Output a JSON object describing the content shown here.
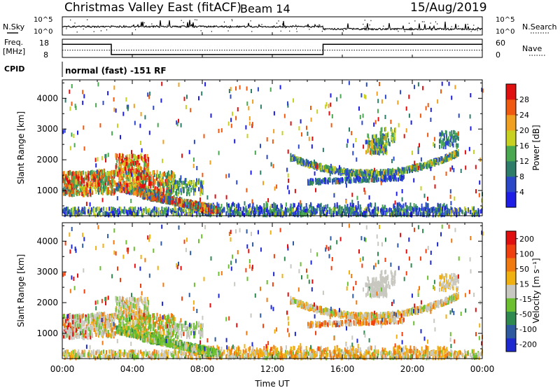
{
  "header": {
    "title": "Christmas Valley East (fitACF)",
    "beam": "Beam 14",
    "date": "15/Aug/2019"
  },
  "panels": {
    "nsky": {
      "left_label": "N.Sky",
      "right_label": "N.Search",
      "left_ticks": [
        "10^5",
        "10^0"
      ],
      "right_ticks": [
        "10^5",
        "10^0"
      ]
    },
    "freq": {
      "left_label_1": "Freq.",
      "left_label_2": "[MHz]",
      "right_label": "Nave",
      "left_ticks": [
        "18",
        "8"
      ],
      "right_ticks": [
        "60",
        "0"
      ],
      "freq_mhz": [
        {
          "from": 0.0,
          "to": 2.8,
          "value": 15.2
        },
        {
          "from": 2.8,
          "to": 14.9,
          "value": 9.6
        },
        {
          "from": 14.9,
          "to": 24.0,
          "value": 15.2
        }
      ],
      "nave": 24
    },
    "cpid": {
      "label": "CPID",
      "text": "normal (fast) -151 RF"
    }
  },
  "chart_data": [
    {
      "type": "heatmap",
      "name": "power",
      "ylabel": "Slant Range [km]",
      "yticks": [
        "1000",
        "2000",
        "3000",
        "4000"
      ],
      "ylim": [
        180,
        4600
      ],
      "colorbar_label": "Power [dB]",
      "colorbar_ticks": [
        "4",
        "8",
        "12",
        "16",
        "20",
        "24",
        "28"
      ],
      "colorbar_range": [
        0,
        32
      ]
    },
    {
      "type": "heatmap",
      "name": "velocity",
      "ylabel": "Slant Range [km]",
      "yticks": [
        "1000",
        "2000",
        "3000",
        "4000"
      ],
      "ylim": [
        180,
        4600
      ],
      "colorbar_label": "Velocity [m s⁻¹]",
      "colorbar_ticks": [
        "200",
        "100",
        "50",
        "15",
        "-15",
        "-50",
        "-100",
        "-200"
      ]
    }
  ],
  "xaxis": {
    "label": "Time UT",
    "ticks": [
      "00:00",
      "04:00",
      "08:00",
      "12:00",
      "16:00",
      "20:00",
      "00:00"
    ],
    "range_hours": [
      0,
      24
    ]
  },
  "colors": {
    "power": [
      "#1e1ee6",
      "#2a48c8",
      "#2e7d6a",
      "#4aa850",
      "#c8d020",
      "#f0a020",
      "#f05a10",
      "#e01010"
    ],
    "velocity": [
      "#1e2ad0",
      "#2e5aa0",
      "#2f8a50",
      "#6cc030",
      "#c8c8c0",
      "#f0b010",
      "#f07a10",
      "#f04010",
      "#e01010"
    ]
  }
}
